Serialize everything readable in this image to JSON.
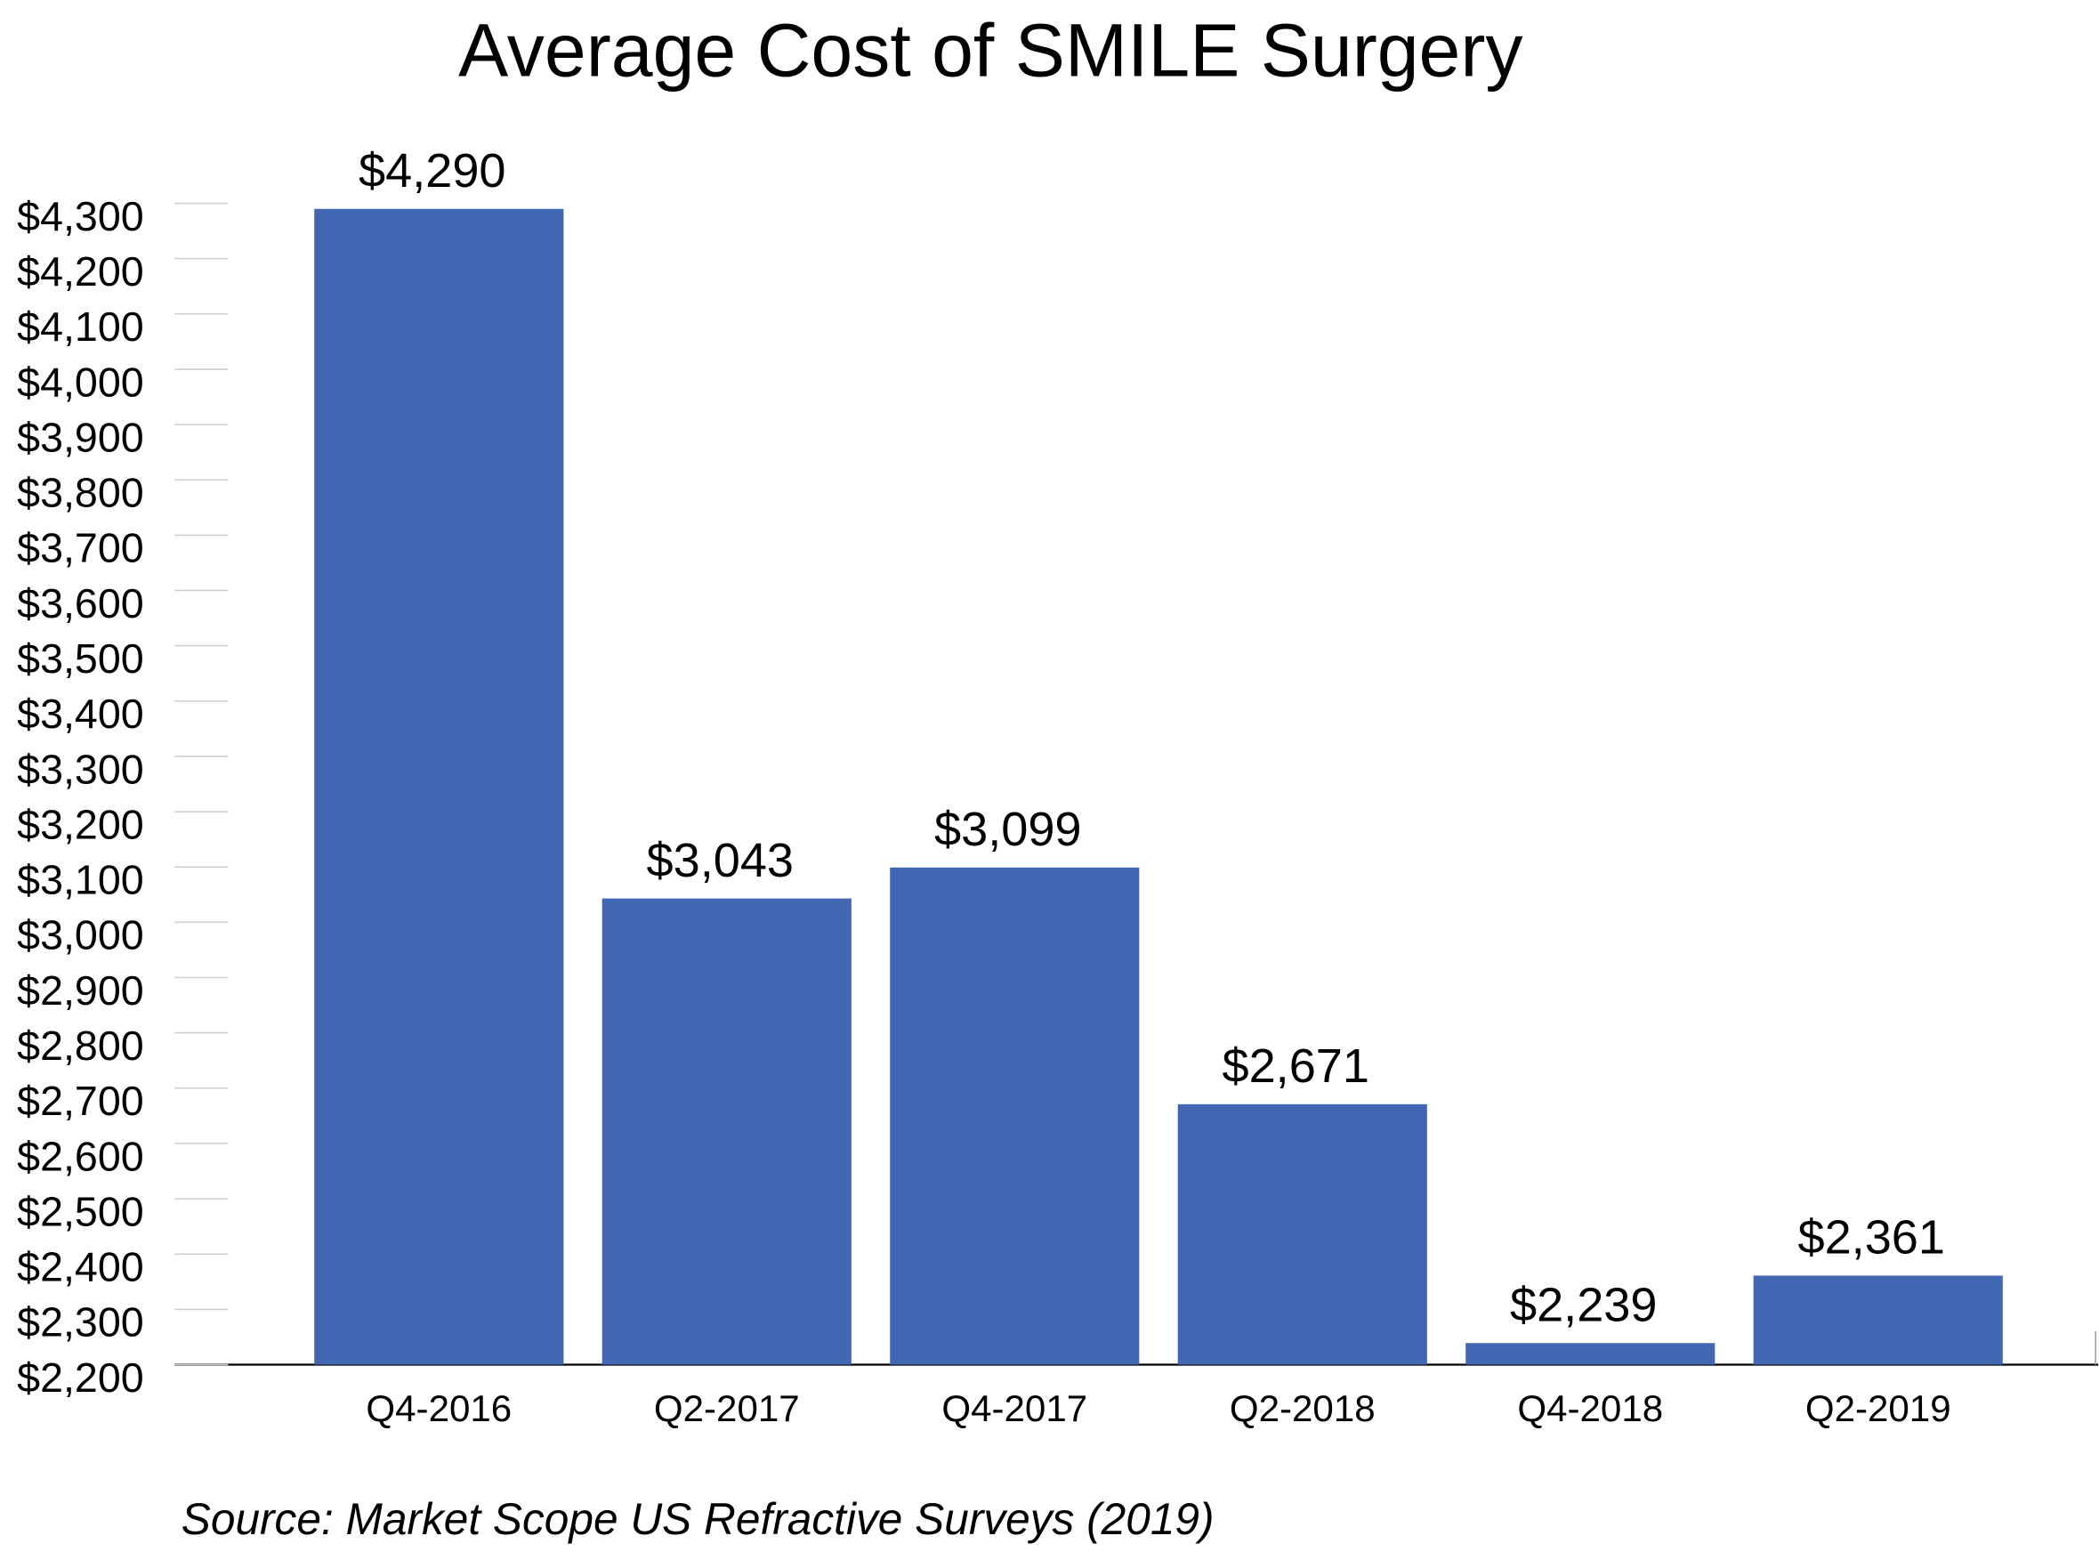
{
  "chart_data": {
    "type": "bar",
    "title": "Average Cost of SMILE Surgery",
    "categories": [
      "Q4-2016",
      "Q2-2017",
      "Q4-2017",
      "Q2-2018",
      "Q4-2018",
      "Q2-2019"
    ],
    "values": [
      4290,
      3043,
      3099,
      2671,
      2239,
      2361
    ],
    "value_labels": [
      "$4,290",
      "$3,043",
      "$3,099",
      "$2,671",
      "$2,239",
      "$2,361"
    ],
    "color": "#4267b2",
    "ylim": [
      2200,
      4300
    ],
    "yticks": [
      {
        "value": 2200,
        "label": "$2,200"
      },
      {
        "value": 2300,
        "label": "$2,300"
      },
      {
        "value": 2400,
        "label": "$2,400"
      },
      {
        "value": 2500,
        "label": "$2,500"
      },
      {
        "value": 2600,
        "label": "$2,600"
      },
      {
        "value": 2700,
        "label": "$2,700"
      },
      {
        "value": 2800,
        "label": "$2,800"
      },
      {
        "value": 2900,
        "label": "$2,900"
      },
      {
        "value": 3000,
        "label": "$3,000"
      },
      {
        "value": 3100,
        "label": "$3,100"
      },
      {
        "value": 3200,
        "label": "$3,200"
      },
      {
        "value": 3300,
        "label": "$3,300"
      },
      {
        "value": 3400,
        "label": "$3,400"
      },
      {
        "value": 3500,
        "label": "$3,500"
      },
      {
        "value": 3600,
        "label": "$3,600"
      },
      {
        "value": 3700,
        "label": "$3,700"
      },
      {
        "value": 3800,
        "label": "$3,800"
      },
      {
        "value": 3900,
        "label": "$3,900"
      },
      {
        "value": 4000,
        "label": "$4,000"
      },
      {
        "value": 4100,
        "label": "$4,100"
      },
      {
        "value": 4200,
        "label": "$4,200"
      },
      {
        "value": 4300,
        "label": "$4,300"
      }
    ],
    "grid": true,
    "source": "Source: Market Scope US Refractive Surveys (2019)"
  }
}
